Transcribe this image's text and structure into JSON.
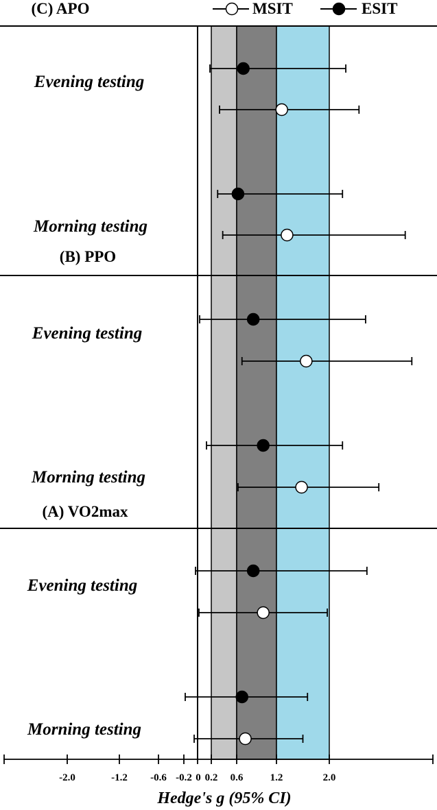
{
  "legend": {
    "series": [
      {
        "name": "MSIT",
        "marker": "open-circle"
      },
      {
        "name": "ESIT",
        "marker": "filled-circle"
      }
    ]
  },
  "bands": {
    "light_gray": {
      "from": 0.2,
      "to": 0.6,
      "color": "#c6c6c6"
    },
    "dark_gray": {
      "from": 0.6,
      "to": 1.2,
      "color": "#808080"
    },
    "light_blue": {
      "from": 1.2,
      "to": 2.0,
      "color": "#9fd9ea"
    }
  },
  "chart_data": {
    "type": "forest",
    "xlabel": "Hedge's g (95% CI)",
    "xlim": [
      -3.0,
      3.5
    ],
    "xticks": [
      -2.0,
      -1.2,
      -0.6,
      -0.2,
      0,
      0.2,
      0.6,
      1.2,
      2.0
    ],
    "xtick_labels": [
      "-2.0",
      "-1.2",
      "-0.6",
      "-0.2",
      "0",
      "0.2",
      "0.6",
      "1.2",
      "2.0"
    ],
    "reference_line": 0,
    "panels": [
      {
        "title": "(C) APO",
        "groups": [
          {
            "label": "Evening testing",
            "points": [
              {
                "series": "ESIT",
                "estimate": 0.7,
                "ci_low": 0.18,
                "ci_high": 2.25
              },
              {
                "series": "MSIT",
                "estimate": 1.28,
                "ci_low": 0.33,
                "ci_high": 2.45
              }
            ]
          },
          {
            "label": "Morning testing",
            "points": [
              {
                "series": "ESIT",
                "estimate": 0.62,
                "ci_low": 0.3,
                "ci_high": 2.2
              },
              {
                "series": "MSIT",
                "estimate": 1.36,
                "ci_low": 0.38,
                "ci_high": 3.15
              }
            ]
          }
        ]
      },
      {
        "title": "(B) PPO",
        "groups": [
          {
            "label": "Evening testing",
            "points": [
              {
                "series": "ESIT",
                "estimate": 0.85,
                "ci_low": 0.03,
                "ci_high": 2.55
              },
              {
                "series": "MSIT",
                "estimate": 1.65,
                "ci_low": 0.68,
                "ci_high": 3.25
              }
            ]
          },
          {
            "label": "Morning testing",
            "points": [
              {
                "series": "ESIT",
                "estimate": 1.0,
                "ci_low": 0.13,
                "ci_high": 2.2
              },
              {
                "series": "MSIT",
                "estimate": 1.58,
                "ci_low": 0.62,
                "ci_high": 2.75
              }
            ]
          }
        ]
      },
      {
        "title": "(A) VO2max",
        "groups": [
          {
            "label": "Evening testing",
            "points": [
              {
                "series": "ESIT",
                "estimate": 0.85,
                "ci_low": -0.03,
                "ci_high": 2.57
              },
              {
                "series": "MSIT",
                "estimate": 1.0,
                "ci_low": 0.02,
                "ci_high": 1.97
              }
            ]
          },
          {
            "label": "Morning testing",
            "points": [
              {
                "series": "ESIT",
                "estimate": 0.68,
                "ci_low": -0.18,
                "ci_high": 1.67
              },
              {
                "series": "MSIT",
                "estimate": 0.73,
                "ci_low": -0.05,
                "ci_high": 1.6
              }
            ]
          }
        ]
      }
    ]
  }
}
